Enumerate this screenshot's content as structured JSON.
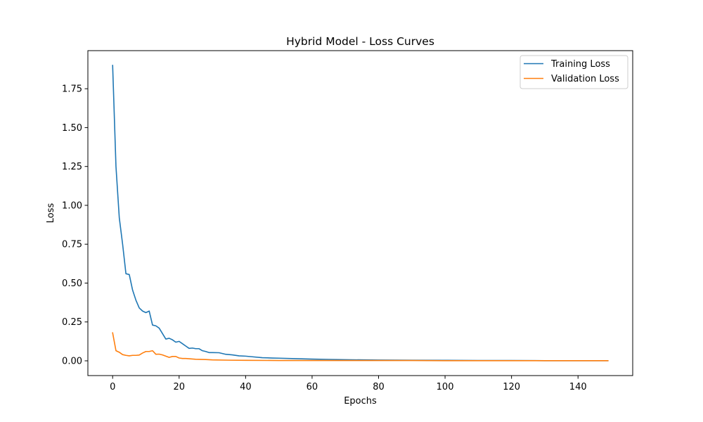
{
  "chart_data": {
    "type": "line",
    "title": "Hybrid Model - Loss Curves",
    "xlabel": "Epochs",
    "ylabel": "Loss",
    "xlim": [
      -7.45,
      156.45
    ],
    "ylim": [
      -0.095,
      1.995
    ],
    "xticks": [
      0,
      20,
      40,
      60,
      80,
      100,
      120,
      140
    ],
    "yticks": [
      0.0,
      0.25,
      0.5,
      0.75,
      1.0,
      1.25,
      1.5,
      1.75
    ],
    "ytick_labels": [
      "0.00",
      "0.25",
      "0.50",
      "0.75",
      "1.00",
      "1.25",
      "1.50",
      "1.75"
    ],
    "grid": false,
    "legend_position": "top-right",
    "series": [
      {
        "name": "Training Loss",
        "color": "#1f77b4",
        "x": [
          0,
          1,
          2,
          3,
          4,
          5,
          6,
          7,
          8,
          9,
          10,
          11,
          12,
          13,
          14,
          15,
          16,
          17,
          18,
          19,
          20,
          21,
          22,
          23,
          24,
          25,
          26,
          27,
          28,
          29,
          30,
          32,
          34,
          36,
          38,
          40,
          42,
          45,
          48,
          50,
          55,
          60,
          65,
          70,
          80,
          90,
          100,
          110,
          120,
          130,
          140,
          149
        ],
        "values": [
          1.9,
          1.25,
          0.92,
          0.75,
          0.56,
          0.555,
          0.455,
          0.39,
          0.34,
          0.32,
          0.31,
          0.32,
          0.23,
          0.225,
          0.21,
          0.175,
          0.14,
          0.145,
          0.135,
          0.12,
          0.125,
          0.11,
          0.095,
          0.08,
          0.082,
          0.078,
          0.078,
          0.065,
          0.06,
          0.053,
          0.053,
          0.052,
          0.042,
          0.038,
          0.032,
          0.03,
          0.026,
          0.02,
          0.018,
          0.017,
          0.014,
          0.011,
          0.009,
          0.007,
          0.005,
          0.004,
          0.003,
          0.002,
          0.002,
          0.001,
          0.001,
          0.001
        ]
      },
      {
        "name": "Validation Loss",
        "color": "#ff7f0e",
        "x": [
          0,
          1,
          2,
          3,
          4,
          5,
          6,
          7,
          8,
          9,
          10,
          11,
          12,
          13,
          14,
          15,
          16,
          17,
          18,
          19,
          20,
          21,
          22,
          25,
          28,
          30,
          35,
          40,
          50,
          60,
          70,
          80,
          90,
          100,
          110,
          120,
          130,
          140,
          149
        ],
        "values": [
          0.18,
          0.065,
          0.055,
          0.04,
          0.035,
          0.032,
          0.035,
          0.035,
          0.037,
          0.05,
          0.06,
          0.06,
          0.065,
          0.042,
          0.043,
          0.038,
          0.03,
          0.022,
          0.028,
          0.028,
          0.018,
          0.015,
          0.015,
          0.01,
          0.008,
          0.006,
          0.004,
          0.003,
          0.002,
          0.002,
          0.002,
          0.002,
          0.002,
          0.001,
          0.001,
          0.001,
          0.001,
          0.001,
          0.001
        ]
      }
    ]
  }
}
